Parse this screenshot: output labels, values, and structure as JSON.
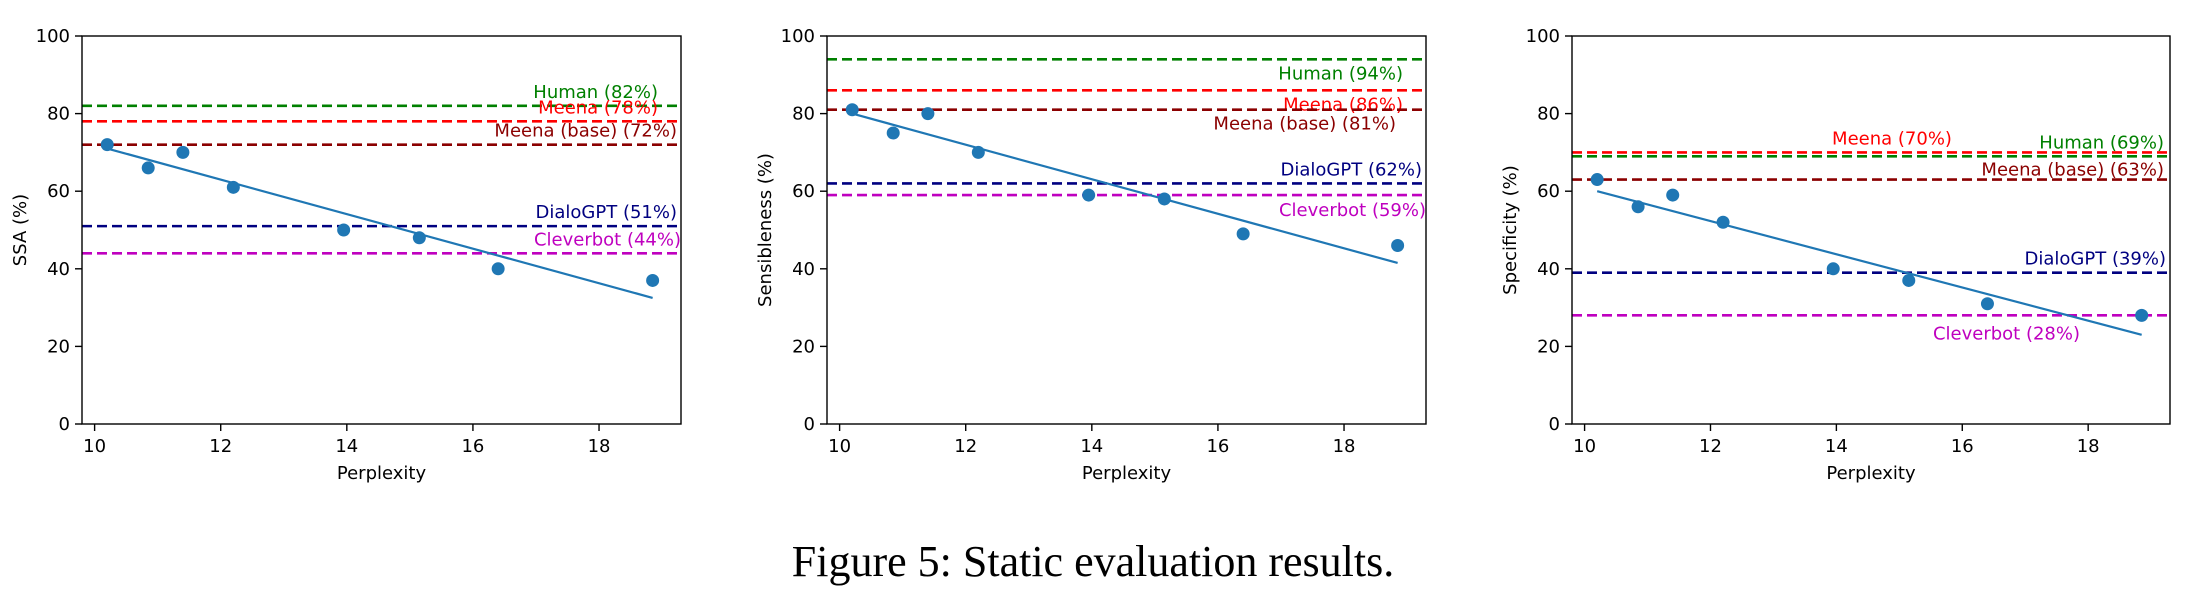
{
  "caption": "Figure 5: Static evaluation results.",
  "chart_data": [
    {
      "type": "scatter",
      "ylabel": "SSA (%)",
      "xlabel": "Perplexity",
      "xlim": [
        9.8,
        19.3
      ],
      "ylim": [
        0,
        100
      ],
      "xticks": [
        10,
        12,
        14,
        16,
        18
      ],
      "yticks": [
        0,
        20,
        40,
        60,
        80,
        100
      ],
      "points": {
        "x": [
          10.2,
          10.85,
          11.4,
          12.2,
          13.95,
          15.15,
          16.4,
          18.85
        ],
        "y": [
          72,
          66,
          70,
          61,
          50,
          48,
          40,
          37
        ]
      },
      "trend": {
        "x": [
          10.2,
          18.85
        ],
        "y": [
          71,
          32.5
        ],
        "color": "#1f77b4"
      },
      "references": [
        {
          "label": "Human (82%)",
          "value": 82,
          "color": "#008000"
        },
        {
          "label": "Meena (78%)",
          "value": 78,
          "color": "#ff0000"
        },
        {
          "label": "Meena (base) (72%)",
          "value": 72,
          "color": "#8b0000"
        },
        {
          "label": "DialoGPT (51%)",
          "value": 51,
          "color": "#000080"
        },
        {
          "label": "Cleverbot (44%)",
          "value": 44,
          "color": "#bf00bf"
        }
      ]
    },
    {
      "type": "scatter",
      "ylabel": "Sensibleness (%)",
      "xlabel": "Perplexity",
      "xlim": [
        9.8,
        19.3
      ],
      "ylim": [
        0,
        100
      ],
      "xticks": [
        10,
        12,
        14,
        16,
        18
      ],
      "yticks": [
        0,
        20,
        40,
        60,
        80,
        100
      ],
      "points": {
        "x": [
          10.2,
          10.85,
          11.4,
          12.2,
          13.95,
          15.15,
          16.4,
          18.85
        ],
        "y": [
          81,
          75,
          80,
          70,
          59,
          58,
          49,
          46
        ]
      },
      "trend": {
        "x": [
          10.2,
          18.85
        ],
        "y": [
          80,
          41.5
        ],
        "color": "#1f77b4"
      },
      "references": [
        {
          "label": "Human (94%)",
          "value": 94,
          "color": "#008000"
        },
        {
          "label": "Meena (86%)",
          "value": 86,
          "color": "#ff0000"
        },
        {
          "label": "Meena (base) (81%)",
          "value": 81,
          "color": "#8b0000"
        },
        {
          "label": "DialoGPT (62%)",
          "value": 62,
          "color": "#000080"
        },
        {
          "label": "Cleverbot (59%)",
          "value": 59,
          "color": "#bf00bf"
        }
      ]
    },
    {
      "type": "scatter",
      "ylabel": "Specificity (%)",
      "xlabel": "Perplexity",
      "xlim": [
        9.8,
        19.3
      ],
      "ylim": [
        0,
        100
      ],
      "xticks": [
        10,
        12,
        14,
        16,
        18
      ],
      "yticks": [
        0,
        20,
        40,
        60,
        80,
        100
      ],
      "points": {
        "x": [
          10.2,
          10.85,
          11.4,
          12.2,
          13.95,
          15.15,
          16.4,
          18.85
        ],
        "y": [
          63,
          56,
          59,
          52,
          40,
          37,
          31,
          28
        ]
      },
      "trend": {
        "x": [
          10.2,
          18.85
        ],
        "y": [
          60,
          23
        ],
        "color": "#1f77b4"
      },
      "references": [
        {
          "label": "Meena (70%)",
          "value": 70,
          "color": "#ff0000"
        },
        {
          "label": "Human (69%)",
          "value": 69,
          "color": "#008000"
        },
        {
          "label": "Meena (base) (63%)",
          "value": 63,
          "color": "#8b0000"
        },
        {
          "label": "DialoGPT (39%)",
          "value": 39,
          "color": "#000080"
        },
        {
          "label": "Cleverbot (28%)",
          "value": 28,
          "color": "#bf00bf"
        }
      ]
    }
  ]
}
